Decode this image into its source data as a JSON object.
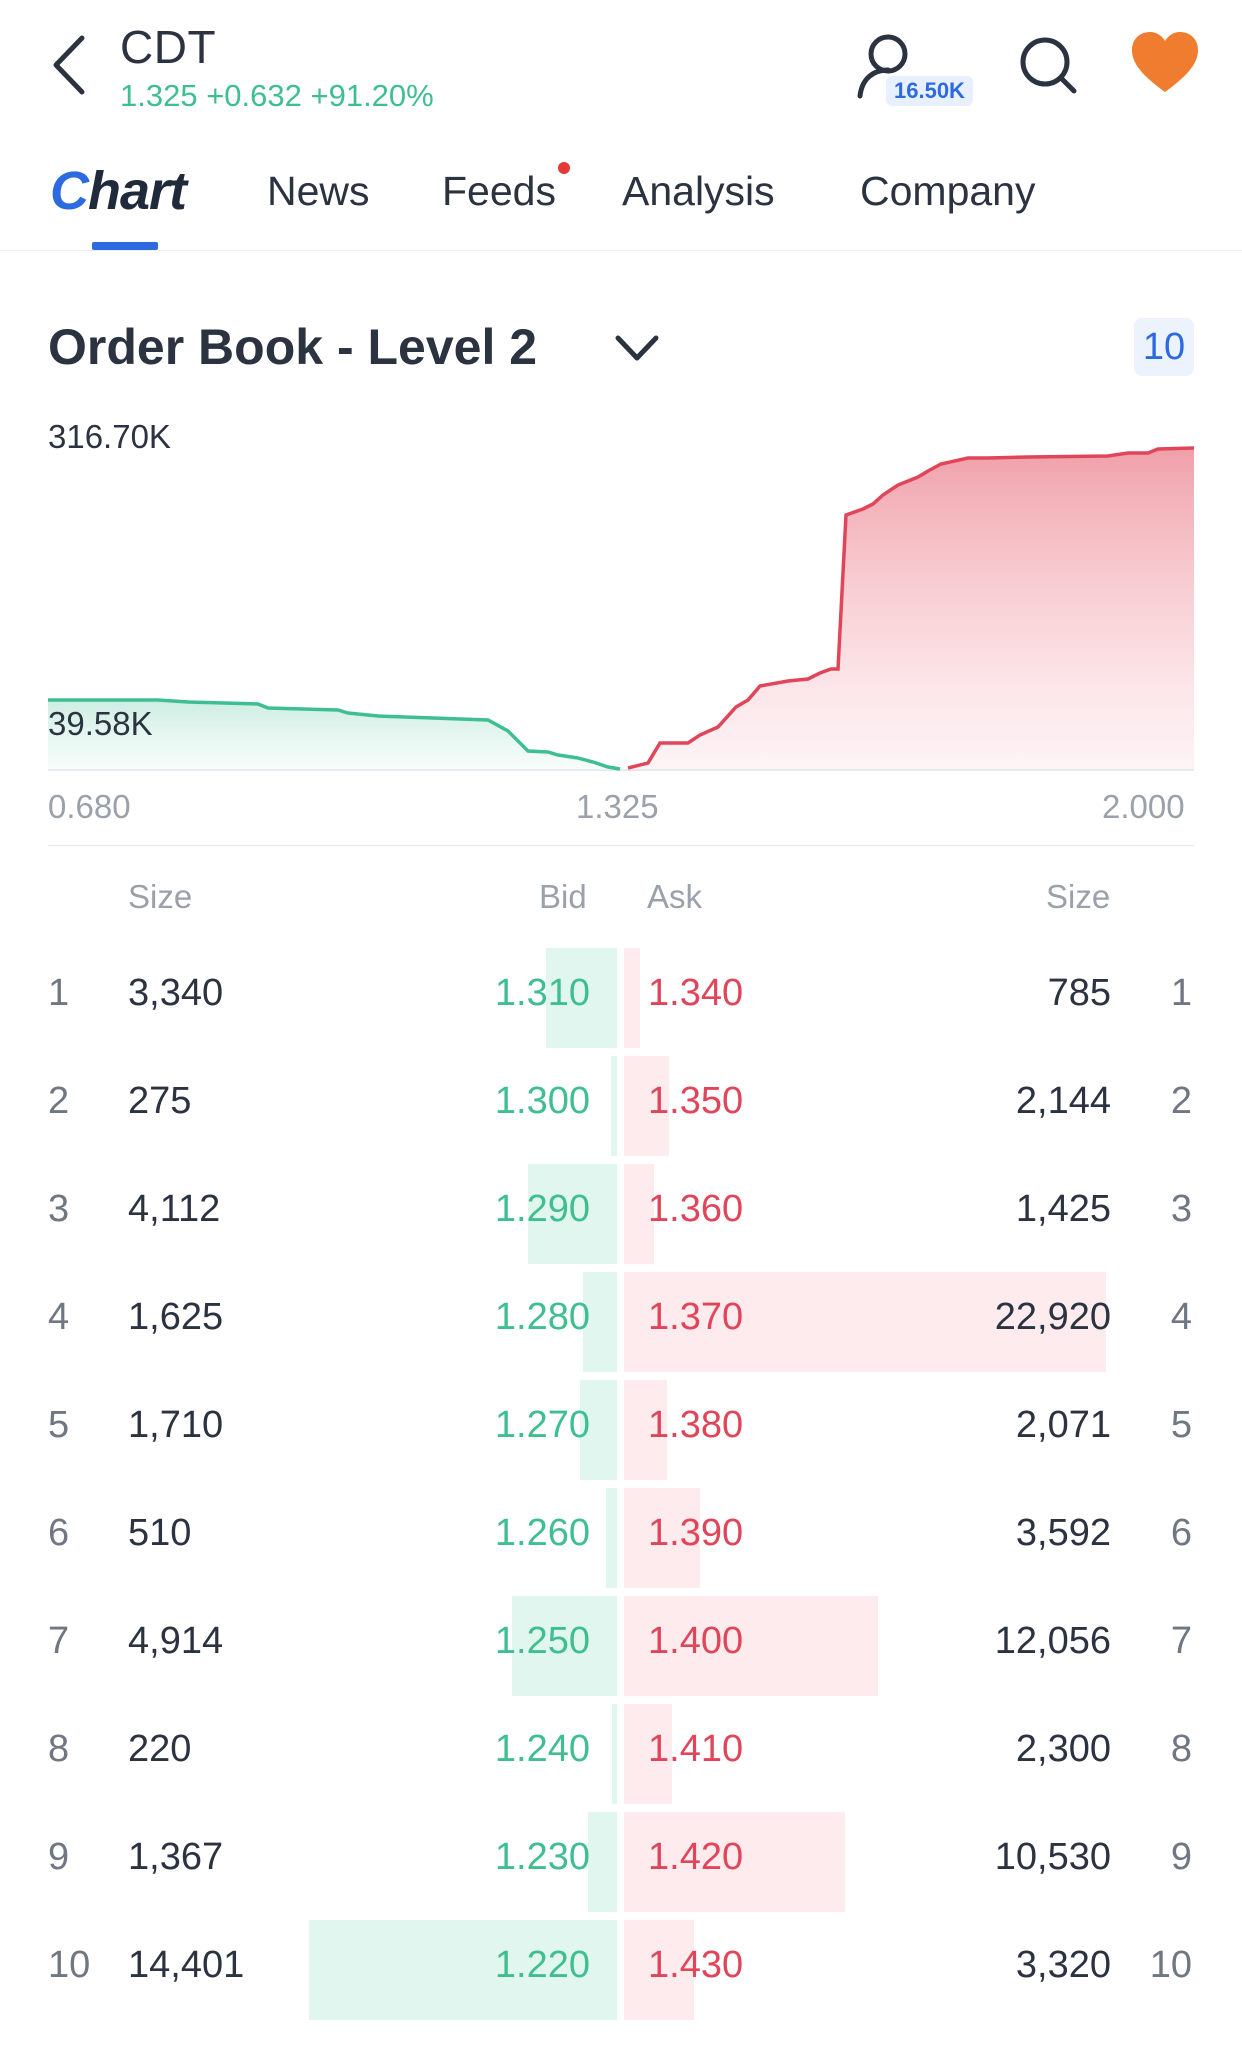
{
  "header": {
    "ticker": "CDT",
    "quote": "1.325 +0.632 +91.20%",
    "follower_badge": "16.50K",
    "icons": [
      "back-arrow-icon",
      "user-icon",
      "search-icon",
      "heart-icon"
    ],
    "accent_color": "#f07c30"
  },
  "tabs": [
    {
      "label": "Chart",
      "active": true
    },
    {
      "label": "News"
    },
    {
      "label": "Feeds",
      "has_dot": true
    },
    {
      "label": "Analysis"
    },
    {
      "label": "Company"
    }
  ],
  "order_book": {
    "title": "Order Book - Level 2",
    "levels_button": "10",
    "depth_chart": {
      "y_top_label": "316.70K",
      "y_mid_label": "39.58K",
      "x_labels": [
        "0.680",
        "1.325",
        "2.000"
      ],
      "bid_color": "#3fbf8f",
      "ask_color": "#e0455a"
    },
    "columns": {
      "bid_size": "Size",
      "bid": "Bid",
      "ask": "Ask",
      "ask_size": "Size"
    },
    "rows": [
      {
        "i": "1",
        "bid_size": "3,340",
        "bid": "1.310",
        "ask": "1.340",
        "ask_size": "785",
        "bid_frac": 0.23,
        "ask_frac": 0.034
      },
      {
        "i": "2",
        "bid_size": "275",
        "bid": "1.300",
        "ask": "1.350",
        "ask_size": "2,144",
        "bid_frac": 0.019,
        "ask_frac": 0.094
      },
      {
        "i": "3",
        "bid_size": "4,112",
        "bid": "1.290",
        "ask": "1.360",
        "ask_size": "1,425",
        "bid_frac": 0.29,
        "ask_frac": 0.062
      },
      {
        "i": "4",
        "bid_size": "1,625",
        "bid": "1.280",
        "ask": "1.370",
        "ask_size": "22,920",
        "bid_frac": 0.11,
        "ask_frac": 1.0
      },
      {
        "i": "5",
        "bid_size": "1,710",
        "bid": "1.270",
        "ask": "1.380",
        "ask_size": "2,071",
        "bid_frac": 0.12,
        "ask_frac": 0.09
      },
      {
        "i": "6",
        "bid_size": "510",
        "bid": "1.260",
        "ask": "1.390",
        "ask_size": "3,592",
        "bid_frac": 0.035,
        "ask_frac": 0.157
      },
      {
        "i": "7",
        "bid_size": "4,914",
        "bid": "1.250",
        "ask": "1.400",
        "ask_size": "12,056",
        "bid_frac": 0.34,
        "ask_frac": 0.526
      },
      {
        "i": "8",
        "bid_size": "220",
        "bid": "1.240",
        "ask": "1.410",
        "ask_size": "2,300",
        "bid_frac": 0.015,
        "ask_frac": 0.1
      },
      {
        "i": "9",
        "bid_size": "1,367",
        "bid": "1.230",
        "ask": "1.420",
        "ask_size": "10,530",
        "bid_frac": 0.095,
        "ask_frac": 0.459
      },
      {
        "i": "10",
        "bid_size": "14,401",
        "bid": "1.220",
        "ask": "1.430",
        "ask_size": "3,320",
        "bid_frac": 1.0,
        "ask_frac": 0.145
      }
    ]
  }
}
